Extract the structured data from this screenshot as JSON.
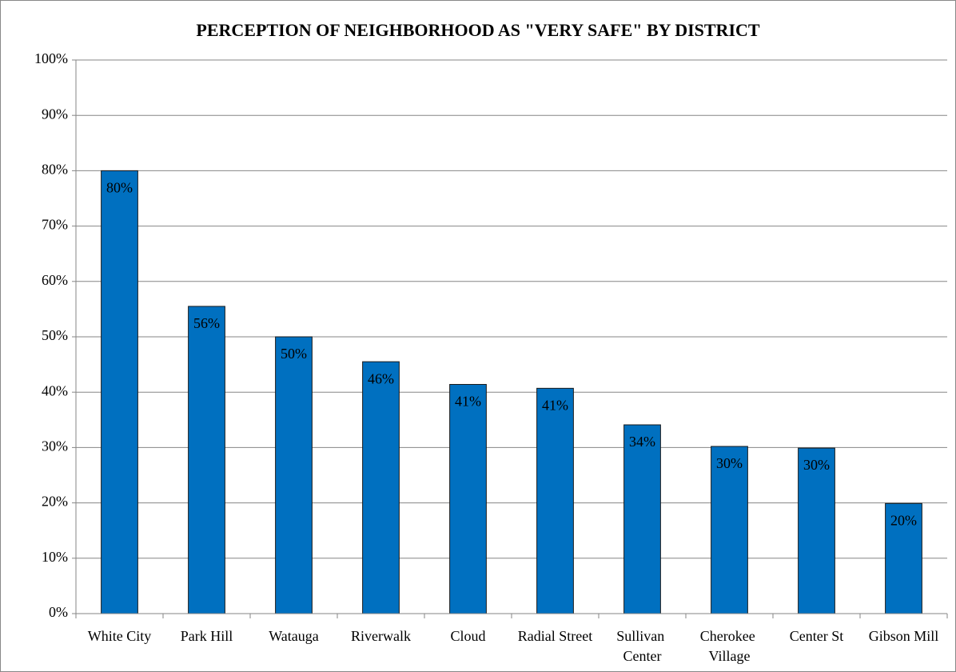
{
  "chart_data": {
    "type": "bar",
    "title": "PERCEPTION OF NEIGHBORHOOD AS \"VERY SAFE\" BY DISTRICT",
    "categories": [
      "White City",
      "Park Hill",
      "Watauga",
      "Riverwalk",
      "Cloud",
      "Radial Street",
      "Sullivan Center",
      "Cherokee Village",
      "Center St",
      "Gibson Mill"
    ],
    "values": [
      80,
      55.5,
      50,
      45.5,
      41.4,
      40.7,
      34.1,
      30.2,
      29.9,
      19.9
    ],
    "value_labels": [
      "80%",
      "56%",
      "50%",
      "46%",
      "41%",
      "41%",
      "34%",
      "30%",
      "30%",
      "20%"
    ],
    "color": "#0070c0",
    "ylim": [
      0,
      100
    ],
    "yticks": [
      {
        "value": 0,
        "label": "0%"
      },
      {
        "value": 10,
        "label": "10%"
      },
      {
        "value": 20,
        "label": "20%"
      },
      {
        "value": 30,
        "label": "30%"
      },
      {
        "value": 40,
        "label": "40%"
      },
      {
        "value": 50,
        "label": "50%"
      },
      {
        "value": 60,
        "label": "60%"
      },
      {
        "value": 70,
        "label": "70%"
      },
      {
        "value": 80,
        "label": "80%"
      },
      {
        "value": 90,
        "label": "90%"
      },
      {
        "value": 100,
        "label": "100%"
      }
    ],
    "grid": true
  }
}
